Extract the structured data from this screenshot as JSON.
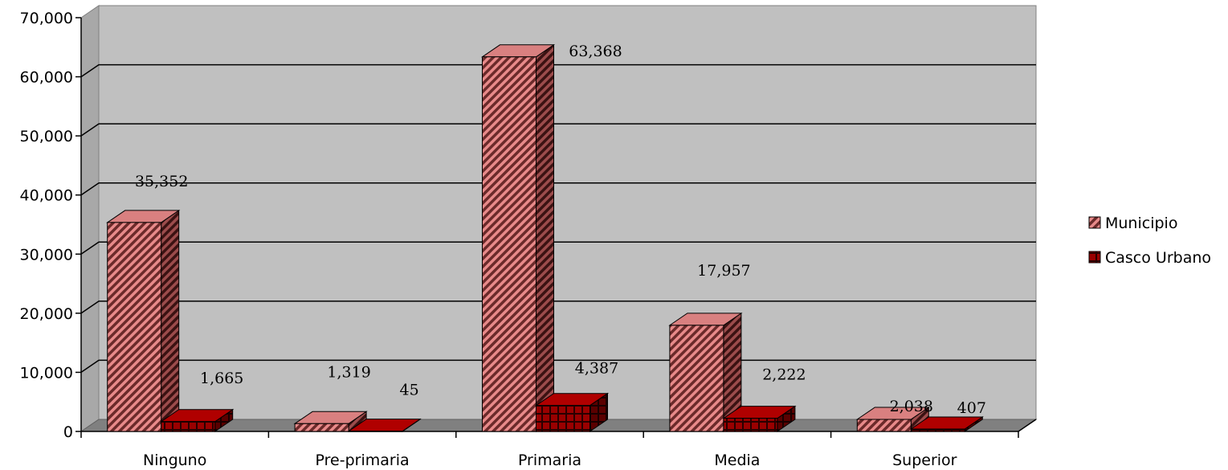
{
  "chart_data": {
    "type": "bar",
    "categories": [
      "Ninguno",
      "Pre-primaria",
      "Primaria",
      "Media",
      "Superior"
    ],
    "series": [
      {
        "name": "Municipio",
        "values": [
          35352,
          1319,
          63368,
          17957,
          2038
        ],
        "labels": [
          "35,352",
          "1,319",
          "63,368",
          "17,957",
          "2,038"
        ],
        "color": "#e07c7c"
      },
      {
        "name": "Casco Urbano",
        "values": [
          1665,
          45,
          4387,
          2222,
          407
        ],
        "labels": [
          "1,665",
          "45",
          "4,387",
          "2,222",
          "407"
        ],
        "color": "#8b0000"
      }
    ],
    "yticks": [
      "0",
      "10,000",
      "20,000",
      "30,000",
      "40,000",
      "50,000",
      "60,000",
      "70,000"
    ],
    "ylim": [
      0,
      70000
    ],
    "grid": true,
    "legend_position": "right",
    "style": "3d-clustered-column"
  }
}
